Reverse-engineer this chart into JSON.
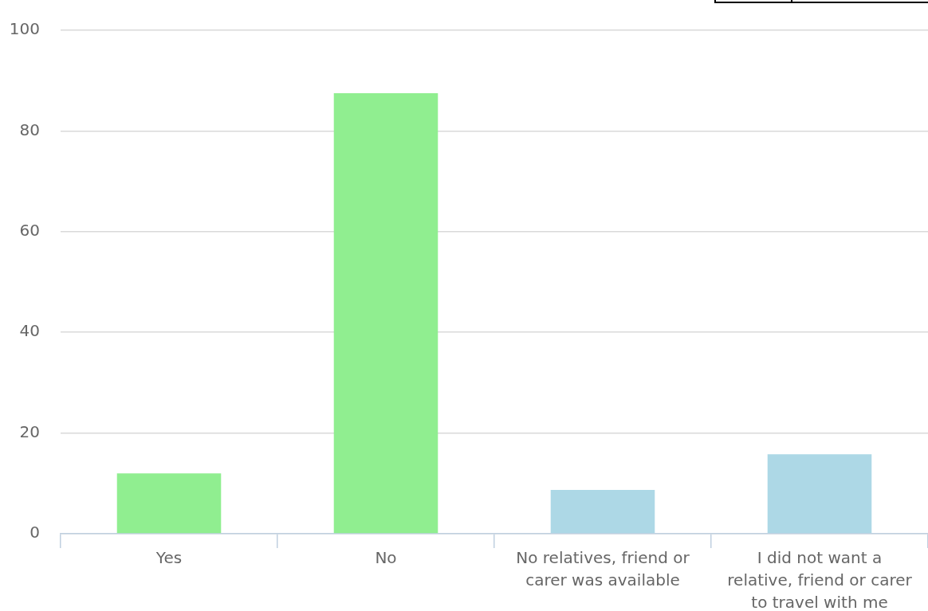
{
  "chart_data": {
    "type": "bar",
    "categories": [
      "Yes",
      "No",
      "No relatives, friend or carer was available",
      "I did not want a relative, friend or carer to travel with me"
    ],
    "values": [
      12,
      87.5,
      8.7,
      15.8
    ],
    "colors": [
      "#90ee90",
      "#90ee90",
      "#add8e6",
      "#add8e6"
    ],
    "ylim": [
      0,
      100
    ],
    "yticks": [
      0,
      20,
      40,
      60,
      80,
      100
    ],
    "grid": "y"
  }
}
